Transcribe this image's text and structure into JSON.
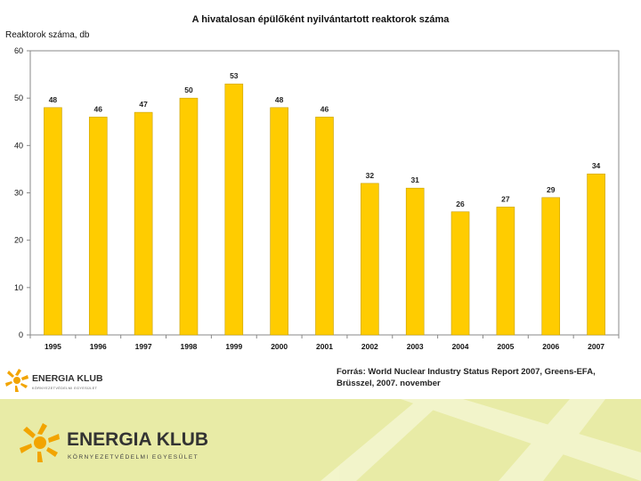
{
  "chart_data": {
    "type": "bar",
    "title": "A hivatalosan épülőként nyilvántartott reaktorok száma",
    "ylabel": "Reaktorok száma, db",
    "xlabel": "",
    "categories": [
      "1995",
      "1996",
      "1997",
      "1998",
      "1999",
      "2000",
      "2001",
      "2002",
      "2003",
      "2004",
      "2005",
      "2006",
      "2007"
    ],
    "values": [
      48,
      46,
      47,
      50,
      53,
      48,
      46,
      32,
      31,
      26,
      27,
      29,
      34
    ],
    "ylim": [
      0,
      60
    ],
    "yticks": [
      0,
      10,
      20,
      30,
      40,
      50,
      60
    ],
    "grid": false,
    "legend": "none",
    "bar_color": "#ffcc00",
    "bar_edge_color": "#c9a000"
  },
  "source": {
    "line1": "Forrás: World Nuclear Industry Status Report 2007, Greens-EFA,",
    "line2": "Brüsszel, 2007. november"
  },
  "brand": {
    "name": "ENERGIA KLUB",
    "tagline": "KÖRNYEZETVÉDELMI EGYESÜLET",
    "color": "#f2a400",
    "text_color": "#333333",
    "footer_bg": "#e8eba6"
  }
}
